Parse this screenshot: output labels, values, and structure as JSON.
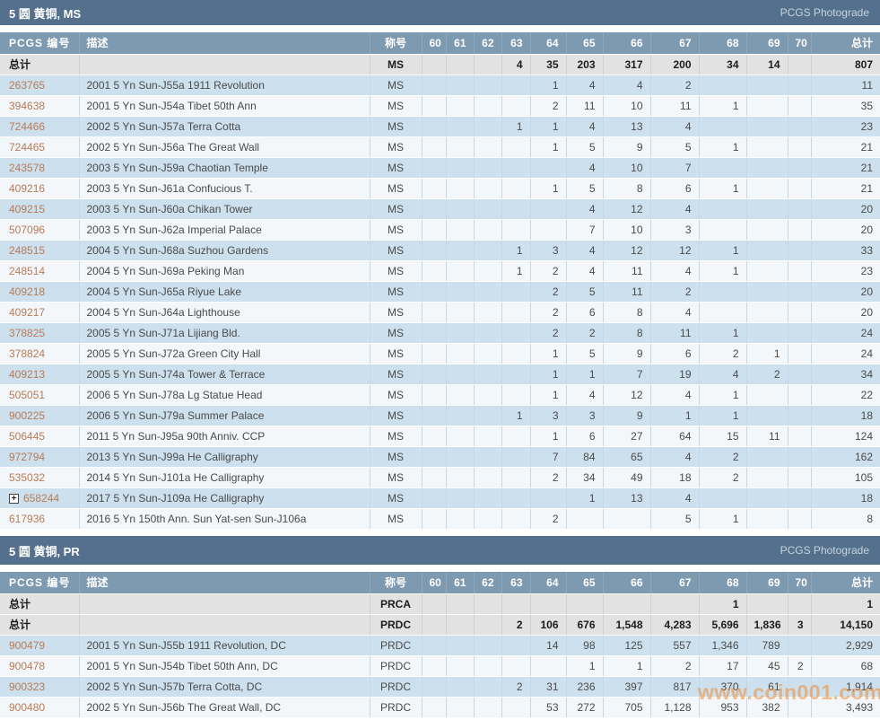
{
  "watermark": "www.coin001.com",
  "colors": {
    "link": "#b87a56",
    "section_bar": "#54708c",
    "column_header": "#7e9ab0",
    "row_blue": "#cde0ee",
    "row_white": "#f3f7fa",
    "row_total": "#e3e2e2",
    "watermark": "#ee8a30"
  },
  "columns": {
    "id": "PCGS 编号",
    "desc": "描述",
    "designation": "称号",
    "grades": [
      "60",
      "61",
      "62",
      "63",
      "64",
      "65",
      "66",
      "67",
      "68",
      "69",
      "70"
    ],
    "total": "总计"
  },
  "sections": [
    {
      "title": "5 圆 黄铜, MS",
      "photograde": "PCGS Photograde",
      "total_rows": [
        {
          "label": "总计",
          "designation": "MS",
          "grades": [
            "",
            "",
            "",
            "4",
            "35",
            "203",
            "317",
            "200",
            "34",
            "14",
            ""
          ],
          "total": "807"
        }
      ],
      "rows": [
        {
          "id": "263765",
          "desc": "2001 5 Yn Sun-J55a 1911 Revolution",
          "designation": "MS",
          "grades": [
            "",
            "",
            "",
            "",
            "1",
            "4",
            "4",
            "2",
            "",
            "",
            ""
          ],
          "total": "11"
        },
        {
          "id": "394638",
          "desc": "2001 5 Yn Sun-J54a Tibet 50th Ann",
          "designation": "MS",
          "grades": [
            "",
            "",
            "",
            "",
            "2",
            "11",
            "10",
            "11",
            "1",
            "",
            ""
          ],
          "total": "35"
        },
        {
          "id": "724466",
          "desc": "2002 5 Yn Sun-J57a Terra Cotta",
          "designation": "MS",
          "grades": [
            "",
            "",
            "",
            "1",
            "1",
            "4",
            "13",
            "4",
            "",
            "",
            ""
          ],
          "total": "23"
        },
        {
          "id": "724465",
          "desc": "2002 5 Yn Sun-J56a The Great Wall",
          "designation": "MS",
          "grades": [
            "",
            "",
            "",
            "",
            "1",
            "5",
            "9",
            "5",
            "1",
            "",
            ""
          ],
          "total": "21"
        },
        {
          "id": "243578",
          "desc": "2003 5 Yn Sun-J59a Chaotian Temple",
          "designation": "MS",
          "grades": [
            "",
            "",
            "",
            "",
            "",
            "4",
            "10",
            "7",
            "",
            "",
            ""
          ],
          "total": "21"
        },
        {
          "id": "409216",
          "desc": "2003 5 Yn Sun-J61a Confucious T.",
          "designation": "MS",
          "grades": [
            "",
            "",
            "",
            "",
            "1",
            "5",
            "8",
            "6",
            "1",
            "",
            ""
          ],
          "total": "21"
        },
        {
          "id": "409215",
          "desc": "2003 5 Yn Sun-J60a Chikan Tower",
          "designation": "MS",
          "grades": [
            "",
            "",
            "",
            "",
            "",
            "4",
            "12",
            "4",
            "",
            "",
            ""
          ],
          "total": "20"
        },
        {
          "id": "507096",
          "desc": "2003 5 Yn Sun-J62a Imperial Palace",
          "designation": "MS",
          "grades": [
            "",
            "",
            "",
            "",
            "",
            "7",
            "10",
            "3",
            "",
            "",
            ""
          ],
          "total": "20"
        },
        {
          "id": "248515",
          "desc": "2004 5 Yn Sun-J68a Suzhou Gardens",
          "designation": "MS",
          "grades": [
            "",
            "",
            "",
            "1",
            "3",
            "4",
            "12",
            "12",
            "1",
            "",
            ""
          ],
          "total": "33"
        },
        {
          "id": "248514",
          "desc": "2004 5 Yn Sun-J69a Peking Man",
          "designation": "MS",
          "grades": [
            "",
            "",
            "",
            "1",
            "2",
            "4",
            "11",
            "4",
            "1",
            "",
            ""
          ],
          "total": "23"
        },
        {
          "id": "409218",
          "desc": "2004 5 Yn Sun-J65a Riyue Lake",
          "designation": "MS",
          "grades": [
            "",
            "",
            "",
            "",
            "2",
            "5",
            "11",
            "2",
            "",
            "",
            ""
          ],
          "total": "20"
        },
        {
          "id": "409217",
          "desc": "2004 5 Yn Sun-J64a Lighthouse",
          "designation": "MS",
          "grades": [
            "",
            "",
            "",
            "",
            "2",
            "6",
            "8",
            "4",
            "",
            "",
            ""
          ],
          "total": "20"
        },
        {
          "id": "378825",
          "desc": "2005 5 Yn Sun-J71a Lijiang Bld.",
          "designation": "MS",
          "grades": [
            "",
            "",
            "",
            "",
            "2",
            "2",
            "8",
            "11",
            "1",
            "",
            ""
          ],
          "total": "24"
        },
        {
          "id": "378824",
          "desc": "2005 5 Yn Sun-J72a Green City Hall",
          "designation": "MS",
          "grades": [
            "",
            "",
            "",
            "",
            "1",
            "5",
            "9",
            "6",
            "2",
            "1",
            ""
          ],
          "total": "24"
        },
        {
          "id": "409213",
          "desc": "2005 5 Yn Sun-J74a Tower & Terrace",
          "designation": "MS",
          "grades": [
            "",
            "",
            "",
            "",
            "1",
            "1",
            "7",
            "19",
            "4",
            "2",
            ""
          ],
          "total": "34"
        },
        {
          "id": "505051",
          "desc": "2006 5 Yn Sun-J78a Lg Statue Head",
          "designation": "MS",
          "grades": [
            "",
            "",
            "",
            "",
            "1",
            "4",
            "12",
            "4",
            "1",
            "",
            ""
          ],
          "total": "22"
        },
        {
          "id": "900225",
          "desc": "2006 5 Yn Sun-J79a Summer Palace",
          "designation": "MS",
          "grades": [
            "",
            "",
            "",
            "1",
            "3",
            "3",
            "9",
            "1",
            "1",
            "",
            ""
          ],
          "total": "18"
        },
        {
          "id": "506445",
          "desc": "2011 5 Yn Sun-J95a 90th Anniv. CCP",
          "designation": "MS",
          "grades": [
            "",
            "",
            "",
            "",
            "1",
            "6",
            "27",
            "64",
            "15",
            "11",
            ""
          ],
          "total": "124"
        },
        {
          "id": "972794",
          "desc": "2013 5 Yn Sun-J99a He Calligraphy",
          "designation": "MS",
          "grades": [
            "",
            "",
            "",
            "",
            "7",
            "84",
            "65",
            "4",
            "2",
            "",
            ""
          ],
          "total": "162"
        },
        {
          "id": "535032",
          "desc": "2014 5 Yn Sun-J101a He Calligraphy",
          "designation": "MS",
          "grades": [
            "",
            "",
            "",
            "",
            "2",
            "34",
            "49",
            "18",
            "2",
            "",
            ""
          ],
          "total": "105"
        },
        {
          "id": "658244",
          "expand": true,
          "desc": "2017 5 Yn Sun-J109a He Calligraphy",
          "designation": "MS",
          "grades": [
            "",
            "",
            "",
            "",
            "",
            "1",
            "13",
            "4",
            "",
            "",
            ""
          ],
          "total": "18"
        },
        {
          "id": "617936",
          "desc": "2016 5 Yn 150th Ann. Sun Yat-sen Sun-J106a",
          "designation": "MS",
          "grades": [
            "",
            "",
            "",
            "",
            "2",
            "",
            "",
            "5",
            "1",
            "",
            ""
          ],
          "total": "8"
        }
      ]
    },
    {
      "title": "5 圆 黄铜, PR",
      "photograde": "PCGS Photograde",
      "total_rows": [
        {
          "label": "总计",
          "designation": "PRCA",
          "grades": [
            "",
            "",
            "",
            "",
            "",
            "",
            "",
            "",
            "1",
            "",
            ""
          ],
          "total": "1"
        },
        {
          "label": "总计",
          "designation": "PRDC",
          "grades": [
            "",
            "",
            "",
            "2",
            "106",
            "676",
            "1,548",
            "4,283",
            "5,696",
            "1,836",
            "3"
          ],
          "total": "14,150"
        }
      ],
      "rows": [
        {
          "id": "900479",
          "desc": "2001 5 Yn Sun-J55b 1911 Revolution, DC",
          "designation": "PRDC",
          "grades": [
            "",
            "",
            "",
            "",
            "14",
            "98",
            "125",
            "557",
            "1,346",
            "789",
            ""
          ],
          "total": "2,929"
        },
        {
          "id": "900478",
          "desc": "2001 5 Yn Sun-J54b Tibet 50th Ann, DC",
          "designation": "PRDC",
          "grades": [
            "",
            "",
            "",
            "",
            "",
            "1",
            "1",
            "2",
            "17",
            "45",
            "2"
          ],
          "total": "68"
        },
        {
          "id": "900323",
          "desc": "2002 5 Yn Sun-J57b Terra Cotta, DC",
          "designation": "PRDC",
          "grades": [
            "",
            "",
            "",
            "2",
            "31",
            "236",
            "397",
            "817",
            "370",
            "61",
            ""
          ],
          "total": "1,914"
        },
        {
          "id": "900480",
          "desc": "2002 5 Yn Sun-J56b The Great Wall, DC",
          "designation": "PRDC",
          "grades": [
            "",
            "",
            "",
            "",
            "53",
            "272",
            "705",
            "1,128",
            "953",
            "382",
            ""
          ],
          "total": "3,493"
        }
      ]
    }
  ]
}
